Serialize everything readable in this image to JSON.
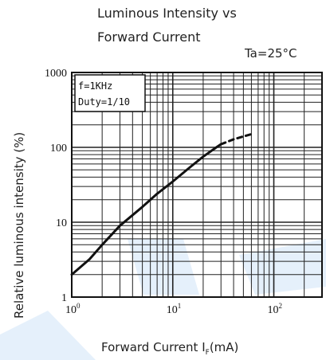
{
  "chart_data": {
    "type": "line",
    "title_line1": "Luminous Intensity vs",
    "title_line2": "Forward Current",
    "condition": "Ta=25°C",
    "xlabel_main": "Forward Current  I",
    "xlabel_sub": "F",
    "xlabel_unit": "(mA)",
    "ylabel": "Relative luminous intensity   (%)",
    "x_scale": "log",
    "y_scale": "log",
    "xlim": [
      1,
      300
    ],
    "ylim": [
      1,
      1000
    ],
    "x_ticks": [
      {
        "value": 1,
        "base": "10",
        "exp": "0"
      },
      {
        "value": 10,
        "base": "10",
        "exp": "1"
      },
      {
        "value": 100,
        "base": "10",
        "exp": "2"
      }
    ],
    "y_ticks": [
      {
        "value": 1,
        "label": "1"
      },
      {
        "value": 10,
        "label": "10"
      },
      {
        "value": 100,
        "label": "100"
      },
      {
        "value": 1000,
        "label": "1000"
      }
    ],
    "grid": true,
    "legend_lines": [
      "f=1KHz",
      "Duty=1/10"
    ],
    "legend_position": "top-left",
    "series": [
      {
        "style": "solid",
        "x": [
          1,
          1.5,
          2,
          3,
          5,
          7,
          10,
          15,
          20,
          27,
          30
        ],
        "y": [
          2,
          3.2,
          5,
          9,
          16,
          24,
          35,
          55,
          75,
          100,
          110
        ]
      },
      {
        "style": "dashed",
        "x": [
          30,
          40,
          50,
          60
        ],
        "y": [
          110,
          128,
          140,
          150
        ]
      }
    ]
  },
  "colors": {
    "grid": "#222222",
    "curve": "#111111",
    "watermark": "#cfe3f7"
  }
}
